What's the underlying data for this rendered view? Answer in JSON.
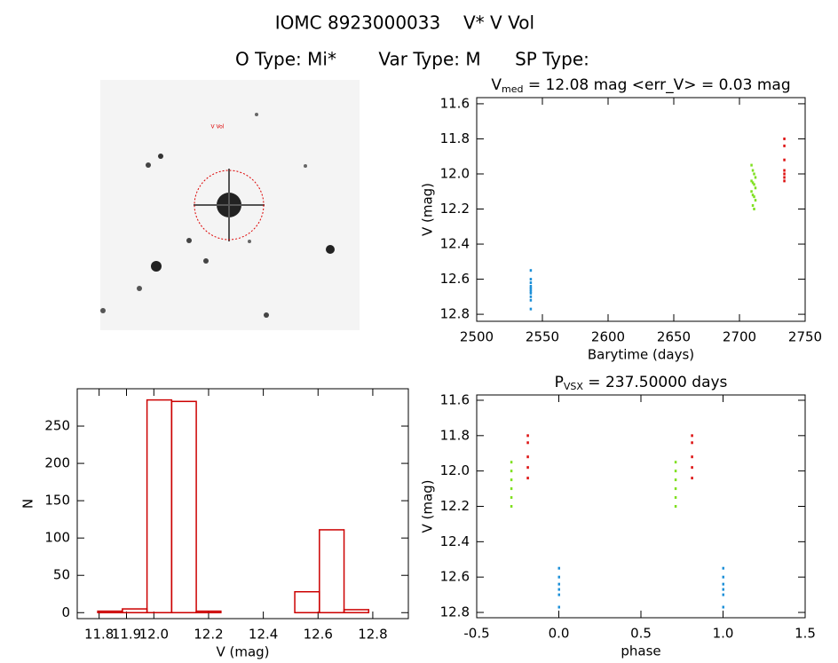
{
  "header": {
    "id": "IOMC 8923000033",
    "name": "V* V Vol",
    "o_type": "O Type: Mi*",
    "var_type": "Var Type: M",
    "sp_type": "SP Type:"
  },
  "image_label": "V Vol",
  "chart_data": [
    {
      "type": "scatter",
      "title": {
        "main": "V",
        "sub": "med",
        "rest": " = 12.08 mag <err_V> = 0.03 mag"
      },
      "x_label": "Barytime (days)",
      "y_label": "V (mag)",
      "xlim": [
        2500,
        2750
      ],
      "xticks": [
        2500,
        2550,
        2600,
        2650,
        2700,
        2750
      ],
      "ylim": [
        11.565,
        12.84
      ],
      "y_inverted": true,
      "yticks": [
        11.6,
        11.8,
        {
          "value": 12,
          "label": "12.0"
        },
        12.2,
        12.4,
        12.6,
        12.8
      ],
      "series": [
        {
          "color": "#1e90d8",
          "x": [
            2541,
            2541,
            2541,
            2541,
            2541,
            2541,
            2541,
            2541,
            2541,
            2541,
            2541
          ],
          "y": [
            12.55,
            12.6,
            12.62,
            12.64,
            12.65,
            12.66,
            12.67,
            12.68,
            12.7,
            12.72,
            12.77
          ]
        },
        {
          "color": "#7fe020",
          "x": [
            2709,
            2710,
            2711,
            2712,
            2709,
            2710,
            2711,
            2712,
            2709,
            2710,
            2711,
            2712,
            2710,
            2711
          ],
          "y": [
            11.95,
            11.98,
            12.0,
            12.02,
            12.04,
            12.05,
            12.06,
            12.08,
            12.1,
            12.12,
            12.13,
            12.15,
            12.18,
            12.2
          ]
        },
        {
          "color": "#dd1010",
          "x": [
            2734,
            2734,
            2734,
            2734,
            2734,
            2734,
            2734
          ],
          "y": [
            11.8,
            11.84,
            11.92,
            11.98,
            12.0,
            12.02,
            12.04
          ]
        }
      ]
    },
    {
      "type": "histogram",
      "x_label": "V (mag)",
      "y_label": "N",
      "xlim": [
        11.72,
        12.93
      ],
      "xticks": [
        11.8,
        11.9,
        {
          "value": 12,
          "label": "12.0"
        },
        12.2,
        12.4,
        12.6,
        12.8
      ],
      "ylim": [
        -8,
        300
      ],
      "yticks": [
        0,
        50,
        100,
        150,
        200,
        250
      ],
      "color": "#cc0000",
      "bins": [
        11.795,
        11.885,
        11.975,
        12.065,
        12.155,
        12.245,
        12.335,
        12.425,
        12.515,
        12.605,
        12.695,
        12.785
      ],
      "counts": [
        2,
        5,
        285,
        283,
        2,
        0,
        0,
        0,
        28,
        111,
        4
      ]
    },
    {
      "type": "scatter",
      "title": {
        "main": "P",
        "sub": "VSX",
        "rest": " = 237.50000 days"
      },
      "x_label": "phase",
      "y_label": "V (mag)",
      "xlim": [
        -0.5,
        1.5
      ],
      "xticks": [
        -0.5,
        {
          "value": 0,
          "label": "0.0"
        },
        0.5,
        {
          "value": 1,
          "label": "1.0"
        },
        1.5
      ],
      "ylim": [
        11.57,
        12.83
      ],
      "y_inverted": true,
      "yticks": [
        11.6,
        11.8,
        {
          "value": 12,
          "label": "12.0"
        },
        12.2,
        12.4,
        12.6,
        12.8
      ],
      "series": [
        {
          "color": "#1e90d8",
          "x": [
            0,
            0,
            0,
            0,
            0,
            0,
            1,
            1,
            1,
            1,
            1,
            1
          ],
          "y": [
            12.55,
            12.6,
            12.64,
            12.67,
            12.7,
            12.77,
            12.55,
            12.6,
            12.64,
            12.67,
            12.7,
            12.77
          ]
        },
        {
          "color": "#7fe020",
          "x": [
            -0.29,
            -0.29,
            -0.29,
            -0.29,
            -0.29,
            -0.29,
            0.71,
            0.71,
            0.71,
            0.71,
            0.71,
            0.71
          ],
          "y": [
            11.95,
            12.0,
            12.05,
            12.1,
            12.15,
            12.2,
            11.95,
            12.0,
            12.05,
            12.1,
            12.15,
            12.2
          ]
        },
        {
          "color": "#dd1010",
          "x": [
            -0.19,
            -0.19,
            -0.19,
            -0.19,
            -0.19,
            0.81,
            0.81,
            0.81,
            0.81,
            0.81
          ],
          "y": [
            11.8,
            11.84,
            11.92,
            11.98,
            12.04,
            11.8,
            11.84,
            11.92,
            11.98,
            12.04
          ]
        }
      ]
    }
  ]
}
